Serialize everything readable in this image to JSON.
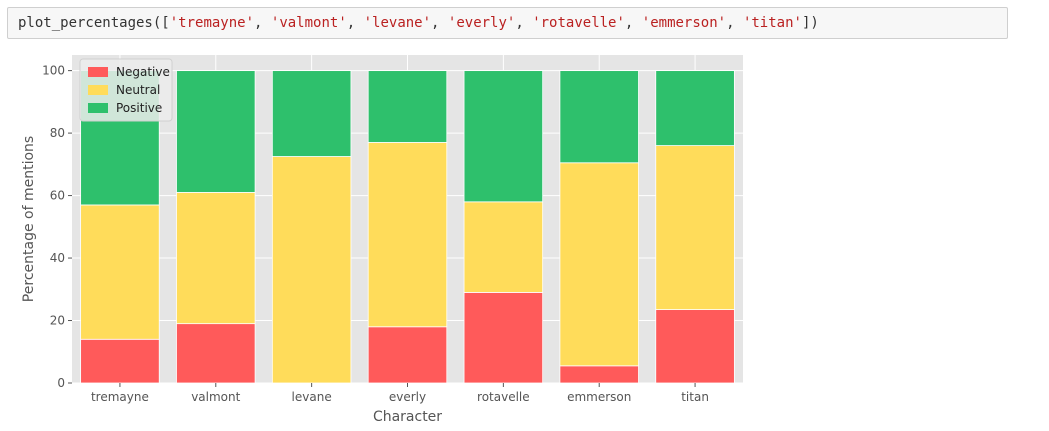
{
  "code_cell": {
    "function_name": "plot_percentages",
    "open_paren": "(",
    "open_bracket": "[",
    "args": [
      "'tremayne'",
      "'valmont'",
      "'levane'",
      "'everly'",
      "'rotavelle'",
      "'emmerson'",
      "'titan'"
    ],
    "separator": ", ",
    "close_bracket": "]",
    "close_paren": ")"
  },
  "colors": {
    "negative": "#ff5a5a",
    "neutral": "#ffdc5a",
    "positive": "#2ec06c",
    "plot_bg": "#e5e5e5",
    "grid": "#ffffff",
    "axis_text": "#555555"
  },
  "chart_data": {
    "type": "bar",
    "stacked": true,
    "categories": [
      "tremayne",
      "valmont",
      "levane",
      "everly",
      "rotavelle",
      "emmerson",
      "titan"
    ],
    "series": [
      {
        "name": "Negative",
        "values": [
          14,
          19,
          0,
          18,
          29,
          5.5,
          23.5
        ]
      },
      {
        "name": "Neutral",
        "values": [
          43,
          42,
          72.5,
          59,
          29,
          65,
          52.5
        ]
      },
      {
        "name": "Positive",
        "values": [
          43,
          39,
          27.5,
          23,
          42,
          29.5,
          24
        ]
      }
    ],
    "xlabel": "Character",
    "ylabel": "Percentage of mentions",
    "ylim": [
      0,
      105
    ],
    "yticks": [
      0,
      20,
      40,
      60,
      80,
      100
    ],
    "grid": true,
    "legend_position": "top-left"
  }
}
